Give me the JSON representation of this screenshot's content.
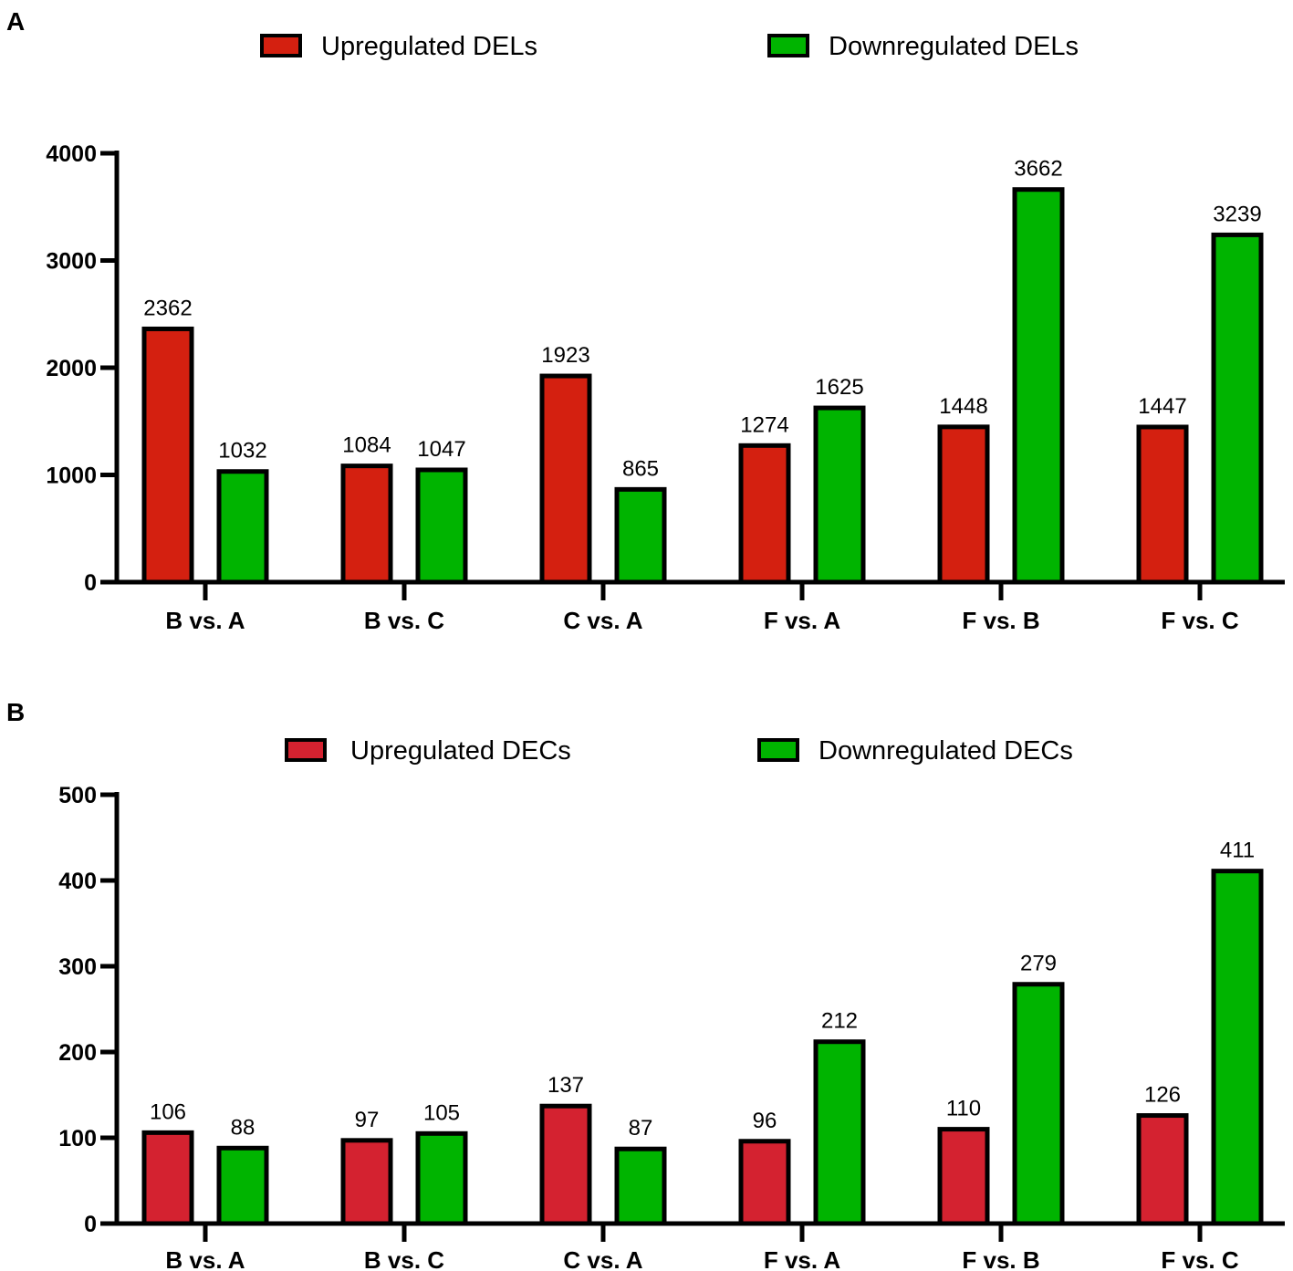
{
  "chart_data": [
    {
      "panel_label": "A",
      "type": "bar",
      "categories": [
        "B vs. A",
        "B vs. C",
        "C vs. A",
        "F vs. A",
        "F vs. B",
        "F vs. C"
      ],
      "series": [
        {
          "name": "Upregulated DELs",
          "color": "#d42010",
          "values": [
            2362,
            1084,
            1923,
            1274,
            1448,
            1447
          ]
        },
        {
          "name": "Downregulated DELs",
          "color": "#00b400",
          "values": [
            1032,
            1047,
            865,
            1625,
            3662,
            3239
          ]
        }
      ],
      "ylim": [
        0,
        4000
      ],
      "yticks": [
        0,
        1000,
        2000,
        3000,
        4000
      ],
      "ytick_labels": [
        "0",
        "1000",
        "2000",
        "3000",
        "4000"
      ],
      "data_labels": [
        [
          "2362",
          "1084",
          "1923",
          "1274",
          "1448",
          "1447"
        ],
        [
          "1032",
          "1047",
          "865",
          "1625",
          "3662",
          "3239"
        ]
      ],
      "legend_position": "top",
      "xlabel": "",
      "ylabel": ""
    },
    {
      "panel_label": "B",
      "type": "bar",
      "categories": [
        "B vs. A",
        "B vs. C",
        "C vs. A",
        "F vs. A",
        "F vs. B",
        "F vs. C"
      ],
      "series": [
        {
          "name": "Upregulated DECs",
          "color": "#d42230",
          "values": [
            106,
            97,
            137,
            96,
            110,
            126
          ]
        },
        {
          "name": "Downregulated DECs",
          "color": "#00b400",
          "values": [
            88,
            105,
            87,
            212,
            279,
            411
          ]
        }
      ],
      "ylim": [
        0,
        500
      ],
      "yticks": [
        0,
        100,
        200,
        300,
        400,
        500
      ],
      "ytick_labels": [
        "0",
        "100",
        "200",
        "300",
        "400",
        "500"
      ],
      "data_labels": [
        [
          "106",
          "97",
          "137",
          "96",
          "110",
          "126"
        ],
        [
          "88",
          "105",
          "87",
          "212",
          "279",
          "411"
        ]
      ],
      "legend_position": "top",
      "xlabel": "",
      "ylabel": ""
    }
  ]
}
